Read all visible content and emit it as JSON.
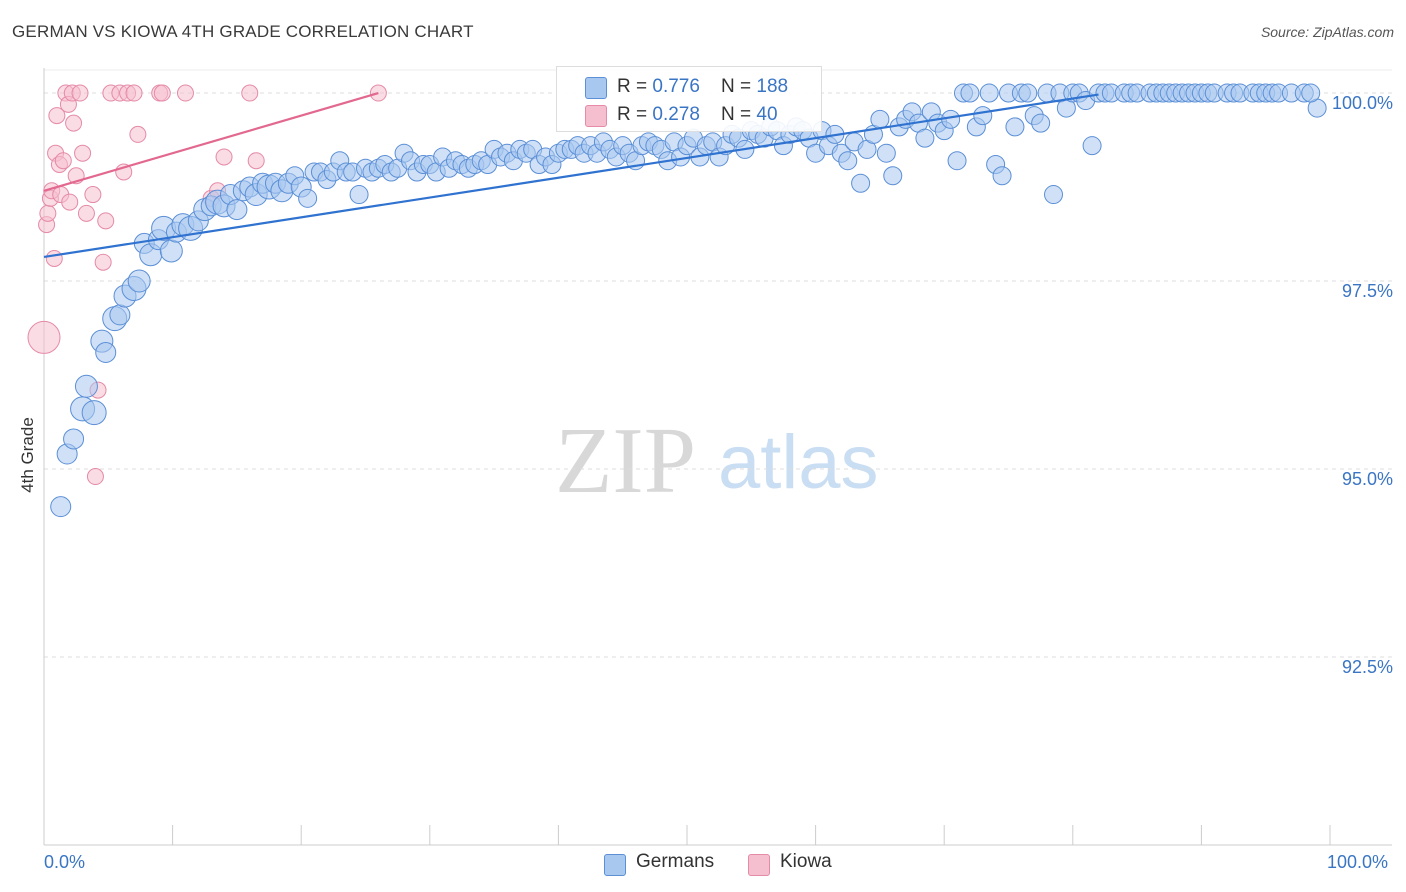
{
  "header": {
    "title": "GERMAN VS KIOWA 4TH GRADE CORRELATION CHART",
    "source": "Source: ZipAtlas.com"
  },
  "watermark": {
    "zip": "ZIP",
    "atlas": "atlas"
  },
  "legend": {
    "germans": {
      "r_label": "R = ",
      "r_value": "0.776",
      "n_label": "N = ",
      "n_value": "188"
    },
    "kiowa": {
      "r_label": "R = ",
      "r_value": "0.278",
      "n_label": "N = ",
      "n_value": "40"
    }
  },
  "bottom_legend": {
    "germans": "Germans",
    "kiowa": "Kiowa"
  },
  "colors": {
    "germans_fill": "#a9c8f0",
    "germans_stroke": "#5b8fd6",
    "germans_line": "#2f72d0",
    "kiowa_fill": "#f6bfd0",
    "kiowa_stroke": "#e58aa7",
    "kiowa_line": "#e2688f",
    "tick_label": "#3a75c4",
    "grid": "#dddddd"
  },
  "chart_data": {
    "type": "scatter",
    "title": "GERMAN VS KIOWA 4TH GRADE CORRELATION CHART",
    "xlabel": "",
    "ylabel": "4th Grade",
    "xlim": [
      0,
      100
    ],
    "ylim": [
      90.0,
      100.2
    ],
    "x_tick_labels": [
      "0.0%",
      "100.0%"
    ],
    "y_ticks": [
      {
        "value": 100.0,
        "label": "100.0%"
      },
      {
        "value": 97.5,
        "label": "97.5%"
      },
      {
        "value": 95.0,
        "label": "95.0%"
      },
      {
        "value": 92.5,
        "label": "92.5%"
      }
    ],
    "series": [
      {
        "name": "Germans",
        "R": 0.776,
        "N": 188,
        "trendline": {
          "x": [
            0,
            82
          ],
          "y": [
            97.82,
            99.98
          ]
        },
        "points": [
          [
            1.3,
            94.5,
            10
          ],
          [
            1.8,
            95.2,
            10
          ],
          [
            2.3,
            95.4,
            10
          ],
          [
            3.0,
            95.8,
            12
          ],
          [
            3.3,
            96.1,
            11
          ],
          [
            3.9,
            95.75,
            12
          ],
          [
            4.5,
            96.7,
            11
          ],
          [
            4.8,
            96.55,
            10
          ],
          [
            5.5,
            97.0,
            12
          ],
          [
            5.9,
            97.05,
            10
          ],
          [
            6.3,
            97.3,
            11
          ],
          [
            7.0,
            97.4,
            12
          ],
          [
            7.4,
            97.5,
            11
          ],
          [
            7.8,
            98.0,
            10
          ],
          [
            8.3,
            97.85,
            11
          ],
          [
            8.9,
            98.05,
            10
          ],
          [
            9.3,
            98.2,
            12
          ],
          [
            9.9,
            97.9,
            11
          ],
          [
            10.3,
            98.15,
            10
          ],
          [
            10.8,
            98.25,
            11
          ],
          [
            11.4,
            98.2,
            12
          ],
          [
            12.0,
            98.3,
            10
          ],
          [
            12.5,
            98.45,
            11
          ],
          [
            13.0,
            98.5,
            10
          ],
          [
            13.5,
            98.55,
            12
          ],
          [
            14.0,
            98.5,
            11
          ],
          [
            14.5,
            98.65,
            10
          ],
          [
            15.0,
            98.45,
            10
          ],
          [
            15.5,
            98.7,
            10
          ],
          [
            16.0,
            98.75,
            10
          ],
          [
            16.5,
            98.65,
            11
          ],
          [
            17.0,
            98.8,
            10
          ],
          [
            17.5,
            98.75,
            12
          ],
          [
            18.0,
            98.8,
            10
          ],
          [
            18.5,
            98.7,
            11
          ],
          [
            19.0,
            98.8,
            10
          ],
          [
            19.5,
            98.9,
            9
          ],
          [
            20.0,
            98.75,
            10
          ],
          [
            20.5,
            98.6,
            9
          ],
          [
            21.0,
            98.95,
            9
          ],
          [
            21.5,
            98.95,
            9
          ],
          [
            22.0,
            98.85,
            9
          ],
          [
            22.5,
            98.95,
            9
          ],
          [
            23.0,
            99.1,
            9
          ],
          [
            23.5,
            98.95,
            9
          ],
          [
            24.0,
            98.95,
            9
          ],
          [
            24.5,
            98.65,
            9
          ],
          [
            25.0,
            99.0,
            9
          ],
          [
            25.5,
            98.95,
            9
          ],
          [
            26.0,
            99.0,
            9
          ],
          [
            26.5,
            99.05,
            9
          ],
          [
            27.0,
            98.95,
            9
          ],
          [
            27.5,
            99.0,
            9
          ],
          [
            28.0,
            99.2,
            9
          ],
          [
            28.5,
            99.1,
            9
          ],
          [
            29.0,
            98.95,
            9
          ],
          [
            29.5,
            99.05,
            9
          ],
          [
            30.0,
            99.05,
            9
          ],
          [
            30.5,
            98.95,
            9
          ],
          [
            31.0,
            99.15,
            9
          ],
          [
            31.5,
            99.0,
            9
          ],
          [
            32.0,
            99.1,
            9
          ],
          [
            32.5,
            99.05,
            9
          ],
          [
            33.0,
            99.0,
            9
          ],
          [
            33.5,
            99.05,
            9
          ],
          [
            34.0,
            99.1,
            9
          ],
          [
            34.5,
            99.05,
            9
          ],
          [
            35.0,
            99.25,
            9
          ],
          [
            35.5,
            99.15,
            9
          ],
          [
            36.0,
            99.2,
            9
          ],
          [
            36.5,
            99.1,
            9
          ],
          [
            37.0,
            99.25,
            9
          ],
          [
            37.5,
            99.2,
            9
          ],
          [
            38.0,
            99.25,
            9
          ],
          [
            38.5,
            99.05,
            9
          ],
          [
            39.0,
            99.15,
            9
          ],
          [
            39.5,
            99.05,
            9
          ],
          [
            40.0,
            99.2,
            9
          ],
          [
            40.5,
            99.25,
            9
          ],
          [
            41.0,
            99.25,
            9
          ],
          [
            41.5,
            99.3,
            9
          ],
          [
            42.0,
            99.2,
            9
          ],
          [
            42.5,
            99.3,
            9
          ],
          [
            43.0,
            99.2,
            9
          ],
          [
            43.5,
            99.35,
            9
          ],
          [
            44.0,
            99.25,
            9
          ],
          [
            44.5,
            99.15,
            9
          ],
          [
            45.0,
            99.3,
            9
          ],
          [
            45.5,
            99.2,
            9
          ],
          [
            46.0,
            99.1,
            9
          ],
          [
            46.5,
            99.3,
            9
          ],
          [
            47.0,
            99.35,
            9
          ],
          [
            47.5,
            99.3,
            9
          ],
          [
            48.0,
            99.25,
            9
          ],
          [
            48.5,
            99.1,
            9
          ],
          [
            49.0,
            99.35,
            9
          ],
          [
            49.5,
            99.15,
            9
          ],
          [
            50.0,
            99.3,
            9
          ],
          [
            50.5,
            99.4,
            9
          ],
          [
            51.0,
            99.15,
            9
          ],
          [
            51.5,
            99.3,
            9
          ],
          [
            52.0,
            99.35,
            9
          ],
          [
            52.5,
            99.15,
            9
          ],
          [
            53.0,
            99.3,
            9
          ],
          [
            53.5,
            99.45,
            9
          ],
          [
            54.0,
            99.4,
            9
          ],
          [
            54.5,
            99.25,
            9
          ],
          [
            55.0,
            99.5,
            9
          ],
          [
            55.5,
            99.45,
            9
          ],
          [
            56.0,
            99.4,
            9
          ],
          [
            56.5,
            99.55,
            9
          ],
          [
            57.0,
            99.5,
            9
          ],
          [
            57.5,
            99.3,
            9
          ],
          [
            58.0,
            99.45,
            9
          ],
          [
            58.5,
            99.55,
            9
          ],
          [
            59.0,
            99.5,
            9
          ],
          [
            59.5,
            99.4,
            9
          ],
          [
            60.0,
            99.2,
            9
          ],
          [
            60.5,
            99.5,
            9
          ],
          [
            61.0,
            99.3,
            9
          ],
          [
            61.5,
            99.45,
            9
          ],
          [
            62.0,
            99.2,
            9
          ],
          [
            62.5,
            99.1,
            9
          ],
          [
            63.0,
            99.35,
            9
          ],
          [
            63.5,
            98.8,
            9
          ],
          [
            64.0,
            99.25,
            9
          ],
          [
            64.5,
            99.45,
            9
          ],
          [
            65.0,
            99.65,
            9
          ],
          [
            65.5,
            99.2,
            9
          ],
          [
            66.0,
            98.9,
            9
          ],
          [
            66.5,
            99.55,
            9
          ],
          [
            67.0,
            99.65,
            9
          ],
          [
            67.5,
            99.75,
            9
          ],
          [
            68.0,
            99.6,
            9
          ],
          [
            68.5,
            99.4,
            9
          ],
          [
            69.0,
            99.75,
            9
          ],
          [
            69.5,
            99.6,
            9
          ],
          [
            70.0,
            99.5,
            9
          ],
          [
            70.5,
            99.65,
            9
          ],
          [
            71.0,
            99.1,
            9
          ],
          [
            71.5,
            100.0,
            9
          ],
          [
            72.0,
            100.0,
            9
          ],
          [
            72.5,
            99.55,
            9
          ],
          [
            73.0,
            99.7,
            9
          ],
          [
            73.5,
            100.0,
            9
          ],
          [
            74.0,
            99.05,
            9
          ],
          [
            74.5,
            98.9,
            9
          ],
          [
            75.0,
            100.0,
            9
          ],
          [
            75.5,
            99.55,
            9
          ],
          [
            76.0,
            100.0,
            9
          ],
          [
            76.5,
            100.0,
            9
          ],
          [
            77.0,
            99.7,
            9
          ],
          [
            77.5,
            99.6,
            9
          ],
          [
            78.0,
            100.0,
            9
          ],
          [
            78.5,
            98.65,
            9
          ],
          [
            79.0,
            100.0,
            9
          ],
          [
            79.5,
            99.8,
            9
          ],
          [
            80.0,
            100.0,
            9
          ],
          [
            80.5,
            100.0,
            9
          ],
          [
            81.0,
            99.9,
            9
          ],
          [
            81.5,
            99.3,
            9
          ],
          [
            82.0,
            100.0,
            9
          ],
          [
            82.5,
            100.0,
            9
          ],
          [
            83.0,
            100.0,
            9
          ],
          [
            84.0,
            100.0,
            9
          ],
          [
            84.5,
            100.0,
            9
          ],
          [
            85.0,
            100.0,
            9
          ],
          [
            86.0,
            100.0,
            9
          ],
          [
            86.5,
            100.0,
            9
          ],
          [
            87.0,
            100.0,
            9
          ],
          [
            87.5,
            100.0,
            9
          ],
          [
            88.0,
            100.0,
            9
          ],
          [
            88.5,
            100.0,
            9
          ],
          [
            89.0,
            100.0,
            9
          ],
          [
            89.5,
            100.0,
            9
          ],
          [
            90.0,
            100.0,
            9
          ],
          [
            90.5,
            100.0,
            9
          ],
          [
            91.0,
            100.0,
            9
          ],
          [
            92.0,
            100.0,
            9
          ],
          [
            92.5,
            100.0,
            9
          ],
          [
            93.0,
            100.0,
            9
          ],
          [
            94.0,
            100.0,
            9
          ],
          [
            94.5,
            100.0,
            9
          ],
          [
            95.0,
            100.0,
            9
          ],
          [
            95.5,
            100.0,
            9
          ],
          [
            96.0,
            100.0,
            9
          ],
          [
            97.0,
            100.0,
            9
          ],
          [
            98.0,
            100.0,
            9
          ],
          [
            99.0,
            99.8,
            9
          ],
          [
            98.5,
            100.0,
            9
          ]
        ]
      },
      {
        "name": "Kiowa",
        "R": 0.278,
        "N": 40,
        "trendline": {
          "x": [
            0,
            26
          ],
          "y": [
            98.7,
            100.0
          ]
        },
        "points": [
          [
            0.0,
            96.75,
            16
          ],
          [
            0.2,
            98.25,
            8
          ],
          [
            0.3,
            98.4,
            8
          ],
          [
            0.5,
            98.6,
            8
          ],
          [
            0.6,
            98.7,
            8
          ],
          [
            0.8,
            97.8,
            8
          ],
          [
            0.9,
            99.2,
            8
          ],
          [
            1.0,
            99.7,
            8
          ],
          [
            1.2,
            99.05,
            8
          ],
          [
            1.3,
            98.65,
            8
          ],
          [
            1.5,
            99.1,
            8
          ],
          [
            1.7,
            100.0,
            8
          ],
          [
            1.9,
            99.85,
            8
          ],
          [
            2.0,
            98.55,
            8
          ],
          [
            2.2,
            100.0,
            8
          ],
          [
            2.3,
            99.6,
            8
          ],
          [
            2.5,
            98.9,
            8
          ],
          [
            2.8,
            100.0,
            8
          ],
          [
            3.0,
            99.2,
            8
          ],
          [
            3.3,
            98.4,
            8
          ],
          [
            3.8,
            98.65,
            8
          ],
          [
            4.0,
            94.9,
            8
          ],
          [
            4.2,
            96.05,
            8
          ],
          [
            4.6,
            97.75,
            8
          ],
          [
            4.8,
            98.3,
            8
          ],
          [
            5.2,
            100.0,
            8
          ],
          [
            5.9,
            100.0,
            8
          ],
          [
            6.2,
            98.95,
            8
          ],
          [
            6.5,
            100.0,
            8
          ],
          [
            7.0,
            100.0,
            8
          ],
          [
            7.3,
            99.45,
            8
          ],
          [
            9.0,
            100.0,
            8
          ],
          [
            9.2,
            100.0,
            8
          ],
          [
            11.0,
            100.0,
            8
          ],
          [
            13.0,
            98.6,
            8
          ],
          [
            13.5,
            98.7,
            8
          ],
          [
            14.0,
            99.15,
            8
          ],
          [
            16.0,
            100.0,
            8
          ],
          [
            16.5,
            99.1,
            8
          ],
          [
            26.0,
            100.0,
            8
          ]
        ]
      }
    ]
  }
}
